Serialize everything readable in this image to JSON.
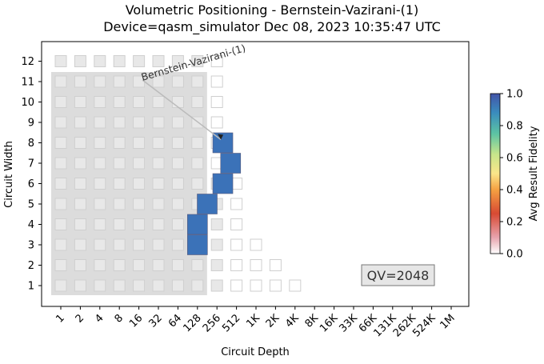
{
  "chart_data": {
    "type": "heatmap",
    "title_line1": "Volumetric Positioning - Bernstein-Vazirani-(1)",
    "title_line2": "Device=qasm_simulator  Dec 08, 2023 10:35:47 UTC",
    "xlabel": "Circuit Depth",
    "ylabel": "Circuit Width",
    "x_ticks": [
      "1",
      "2",
      "4",
      "8",
      "16",
      "32",
      "64",
      "128",
      "256",
      "512",
      "1K",
      "2K",
      "4K",
      "8K",
      "16K",
      "33K",
      "66K",
      "131K",
      "262K",
      "524K",
      "1M"
    ],
    "y_ticks": [
      "1",
      "2",
      "3",
      "4",
      "5",
      "6",
      "7",
      "8",
      "9",
      "10",
      "11",
      "12"
    ],
    "colorbar": {
      "label": "Avg Result Fidelity",
      "ticks": [
        "0.0",
        "0.2",
        "0.4",
        "0.6",
        "0.8",
        "1.0"
      ],
      "range": [
        0.0,
        1.0
      ]
    },
    "annotation": "Bernstein-Vazirani-(1)",
    "qv_label": "QV=2048",
    "qv_region": {
      "max_depth_index": 7,
      "max_width": 11
    },
    "grid_cells": [
      {
        "width": 1,
        "max_depth_index": 12
      },
      {
        "width": 2,
        "max_depth_index": 11
      },
      {
        "width": 3,
        "max_depth_index": 10
      },
      {
        "width": 4,
        "max_depth_index": 9
      },
      {
        "width": 5,
        "max_depth_index": 9
      },
      {
        "width": 6,
        "max_depth_index": 9
      },
      {
        "width": 7,
        "max_depth_index": 8
      },
      {
        "width": 8,
        "max_depth_index": 8
      },
      {
        "width": 9,
        "max_depth_index": 8
      },
      {
        "width": 10,
        "max_depth_index": 8
      },
      {
        "width": 11,
        "max_depth_index": 8
      },
      {
        "width": 12,
        "max_depth_index": 8
      }
    ],
    "data_points": [
      {
        "width": 3,
        "depth": 7.0,
        "fidelity": 1.0
      },
      {
        "width": 4,
        "depth": 7.0,
        "fidelity": 1.0
      },
      {
        "width": 5,
        "depth": 7.5,
        "fidelity": 1.0
      },
      {
        "width": 6,
        "depth": 8.3,
        "fidelity": 1.0
      },
      {
        "width": 7,
        "depth": 8.7,
        "fidelity": 1.0
      },
      {
        "width": 8,
        "depth": 8.3,
        "fidelity": 1.0
      }
    ],
    "point_color": "#3b72b8"
  }
}
